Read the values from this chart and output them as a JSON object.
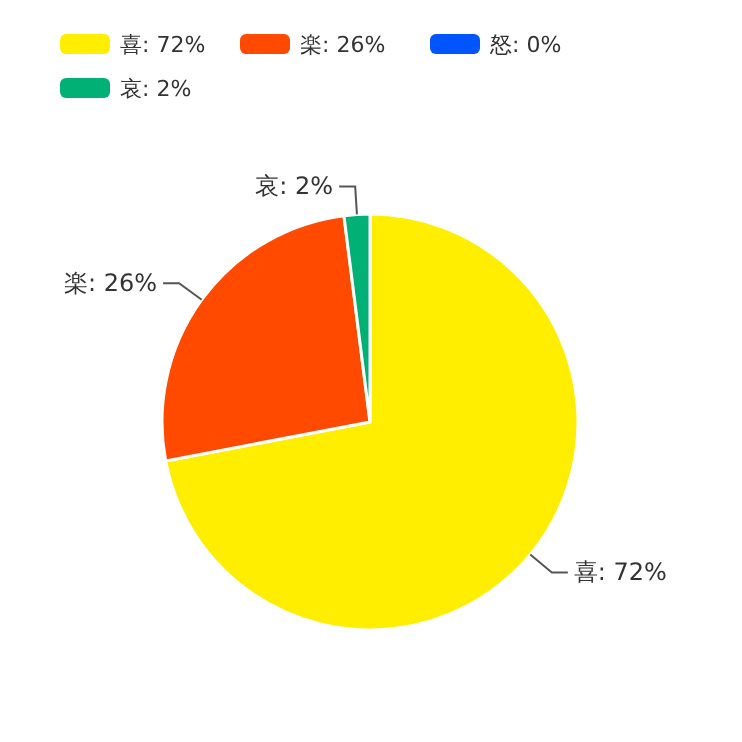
{
  "chart_data": {
    "type": "pie",
    "categories": [
      "喜: 72%",
      "楽: 26%",
      "怒: 0%",
      "哀: 2%"
    ],
    "values": [
      72,
      26,
      0,
      2
    ],
    "colors": [
      "#ffee00",
      "#ff4a00",
      "#0055ff",
      "#00b074"
    ],
    "legend": "top left"
  }
}
